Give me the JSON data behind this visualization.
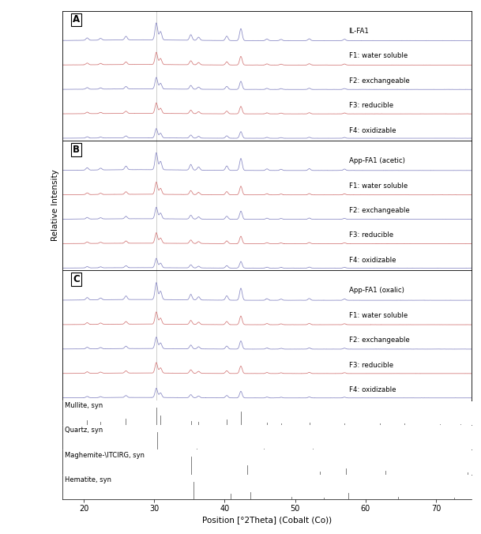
{
  "x_min": 17,
  "x_max": 75,
  "xlabel": "Position [°2Theta] (Cobalt (Co))",
  "ylabel": "Relative Intensity",
  "panel_labels": [
    "A",
    "B",
    "C"
  ],
  "series_labels_A": [
    "IL-FA1",
    "F1: water soluble",
    "F2: exchangeable",
    "F3: reducible",
    "F4: oxidizable"
  ],
  "series_labels_B": [
    "App-FA1 (acetic)",
    "F1: water soluble",
    "F2: exchangeable",
    "F3: reducible",
    "F4: oxidizable"
  ],
  "series_labels_C": [
    "App-FA1 (oxalic)",
    "F1: water soluble",
    "F2: exchangeable",
    "F3: reducible",
    "F4: oxidizable"
  ],
  "color_blue": "#8080c0",
  "color_pink": "#d07070",
  "ref_labels": [
    "Mullite, syn",
    "Quartz, syn",
    "Maghemite-\\ITCIRG, syn",
    "Hematite, syn"
  ],
  "panel_colors": [
    "blue",
    "pink",
    "blue",
    "pink",
    "blue"
  ],
  "mullite_peaks": [
    20.5,
    22.4,
    26.0,
    30.3,
    30.9,
    35.2,
    36.3,
    40.3,
    42.3,
    46.0,
    48.0,
    52.0,
    57.0,
    62.0,
    65.5,
    70.5,
    73.5
  ],
  "mullite_heights": [
    0.25,
    0.18,
    0.35,
    1.0,
    0.55,
    0.22,
    0.18,
    0.3,
    0.75,
    0.12,
    0.1,
    0.14,
    0.1,
    0.08,
    0.07,
    0.06,
    0.05
  ],
  "quartz_peaks": [
    30.4,
    36.0,
    45.5,
    52.5,
    60.5,
    65.5,
    72.5
  ],
  "quartz_heights": [
    1.0,
    0.08,
    0.05,
    0.04,
    0.03,
    0.02,
    0.02
  ],
  "maghemite_peaks": [
    35.2,
    43.2,
    53.5,
    57.2,
    62.8,
    74.5
  ],
  "maghemite_heights": [
    1.0,
    0.5,
    0.15,
    0.35,
    0.2,
    0.1
  ],
  "hematite_peaks": [
    35.6,
    40.9,
    43.6,
    49.5,
    54.1,
    57.5,
    64.6,
    72.6
  ],
  "hematite_heights": [
    1.0,
    0.3,
    0.4,
    0.15,
    0.1,
    0.35,
    0.12,
    0.08
  ]
}
